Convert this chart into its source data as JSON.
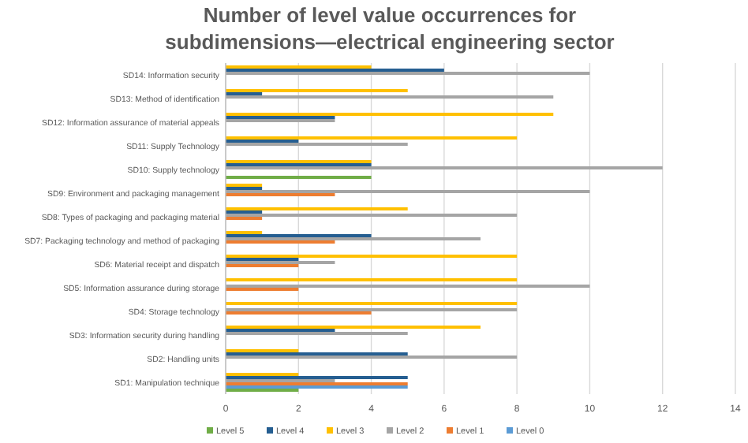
{
  "chart_data": {
    "type": "bar",
    "orientation": "horizontal",
    "title": "Number of level value occurrences for subdimensions—electrical engineering sector",
    "categories": [
      "SD14: Information security",
      "SD13: Method of identification",
      "SD12: Information assurance of material appeals",
      "SD11: Supply Technology",
      "SD10: Supply technology",
      "SD9: Environment and packaging management",
      "SD8: Types of packaging and packaging material",
      "SD7: Packaging technology and method of packaging",
      "SD6: Material receipt and dispatch",
      "SD5: Information assurance during storage",
      "SD4: Storage technology",
      "SD3: Information security during handling",
      "SD2: Handling units",
      "SD1: Manipulation technique"
    ],
    "series": [
      {
        "name": "Level 5",
        "color": "#70ad47",
        "values": [
          0,
          0,
          0,
          0,
          4,
          0,
          0,
          0,
          0,
          0,
          0,
          0,
          0,
          2
        ]
      },
      {
        "name": "Level 4",
        "color": "#255e91",
        "values": [
          6,
          1,
          3,
          2,
          4,
          1,
          1,
          4,
          2,
          0,
          0,
          3,
          5,
          5
        ]
      },
      {
        "name": "Level 3",
        "color": "#ffc000",
        "values": [
          4,
          5,
          9,
          8,
          4,
          1,
          5,
          1,
          8,
          8,
          8,
          7,
          2,
          2
        ]
      },
      {
        "name": "Level 2",
        "color": "#a5a5a5",
        "values": [
          10,
          9,
          3,
          5,
          12,
          10,
          8,
          7,
          3,
          10,
          8,
          5,
          8,
          3
        ]
      },
      {
        "name": "Level 1",
        "color": "#ed7d31",
        "values": [
          0,
          0,
          0,
          0,
          0,
          3,
          1,
          3,
          2,
          2,
          4,
          0,
          0,
          5
        ]
      },
      {
        "name": "Level 0",
        "color": "#5b9bd5",
        "values": [
          0,
          0,
          0,
          0,
          0,
          0,
          0,
          0,
          0,
          0,
          0,
          0,
          0,
          5
        ]
      }
    ],
    "xlim": [
      0,
      14
    ],
    "xticks": [
      0,
      2,
      4,
      6,
      8,
      10,
      12,
      14
    ],
    "grid": "x",
    "legend": "bottom"
  }
}
